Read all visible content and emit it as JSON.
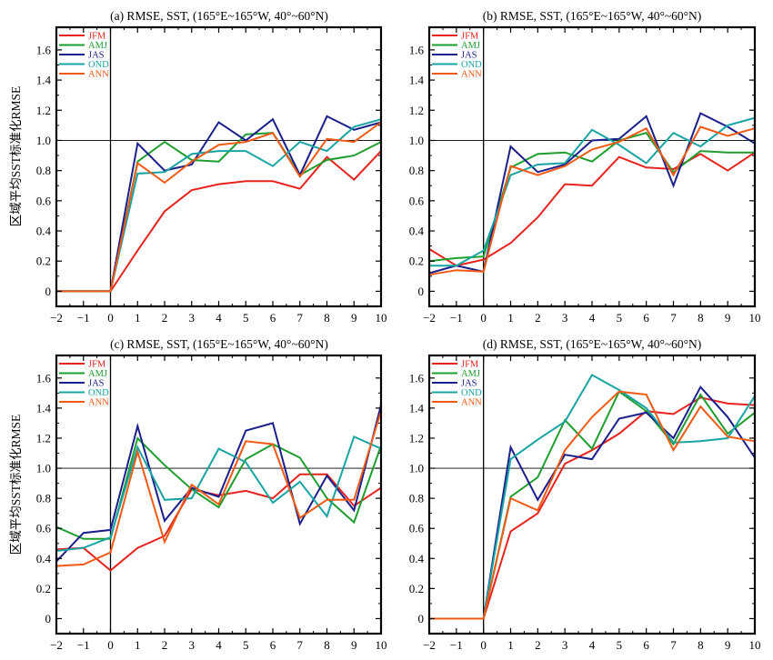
{
  "figure": {
    "ylabel": "区域平均SST标准化RMSE"
  },
  "chart_data": [
    {
      "type": "line",
      "title": "(a) RMSE, SST, (165°E~165°W, 40°~60°N)",
      "x": [
        -2,
        -1,
        0,
        1,
        2,
        3,
        4,
        5,
        6,
        7,
        8,
        9,
        10
      ],
      "xticks": [
        "−2",
        "−1",
        "0",
        "1",
        "2",
        "3",
        "4",
        "5",
        "6",
        "7",
        "8",
        "9",
        "10"
      ],
      "ylim": [
        -0.1,
        1.75
      ],
      "yticks": [
        "0",
        "0.2",
        "0.4",
        "0.6",
        "0.8",
        "1.0",
        "1.2",
        "1.4",
        "1.6"
      ],
      "series": [
        {
          "name": "JFM",
          "color": "#e8231e",
          "values": [
            0,
            0,
            0,
            0.27,
            0.53,
            0.67,
            0.71,
            0.73,
            0.73,
            0.68,
            0.89,
            0.74,
            0.93
          ]
        },
        {
          "name": "AMJ",
          "color": "#1e9e2e",
          "values": [
            0,
            0,
            0,
            0.86,
            0.99,
            0.87,
            0.86,
            1.04,
            1.05,
            0.77,
            0.87,
            0.9,
            0.99
          ]
        },
        {
          "name": "JAS",
          "color": "#1a1f8c",
          "values": [
            0,
            0,
            0,
            0.98,
            0.8,
            0.84,
            1.12,
            1.0,
            1.14,
            0.77,
            1.16,
            1.07,
            1.12
          ]
        },
        {
          "name": "OND",
          "color": "#19a4a4",
          "values": [
            0,
            0,
            0,
            0.78,
            0.79,
            0.91,
            0.93,
            0.93,
            0.83,
            0.99,
            0.93,
            1.09,
            1.14
          ]
        },
        {
          "name": "ANN",
          "color": "#f05a14",
          "values": [
            0,
            0,
            0,
            0.85,
            0.72,
            0.86,
            0.97,
            0.99,
            1.05,
            0.76,
            1.01,
            0.99,
            1.12
          ]
        }
      ]
    },
    {
      "type": "line",
      "title": "(b) RMSE, SST, (165°E~165°W, 40°~60°N)",
      "x": [
        -2,
        -1,
        0,
        1,
        2,
        3,
        4,
        5,
        6,
        7,
        8,
        9,
        10
      ],
      "xticks": [
        "−2",
        "−1",
        "0",
        "1",
        "2",
        "3",
        "4",
        "5",
        "6",
        "7",
        "8",
        "9",
        "10"
      ],
      "ylim": [
        -0.1,
        1.75
      ],
      "yticks": [
        "0",
        "0.2",
        "0.4",
        "0.6",
        "0.8",
        "1.0",
        "1.2",
        "1.4",
        "1.6"
      ],
      "series": [
        {
          "name": "JFM",
          "color": "#e8231e",
          "values": [
            0.28,
            0.17,
            0.21,
            0.32,
            0.49,
            0.71,
            0.7,
            0.89,
            0.82,
            0.81,
            0.91,
            0.8,
            0.92
          ]
        },
        {
          "name": "AMJ",
          "color": "#1e9e2e",
          "values": [
            0.2,
            0.22,
            0.23,
            0.82,
            0.91,
            0.92,
            0.86,
            1.0,
            1.05,
            0.79,
            0.93,
            0.92,
            0.92
          ]
        },
        {
          "name": "JAS",
          "color": "#1a1f8c",
          "values": [
            0.12,
            0.17,
            0.13,
            0.96,
            0.79,
            0.84,
            1.0,
            1.01,
            1.16,
            0.7,
            1.18,
            1.09,
            0.98
          ]
        },
        {
          "name": "OND",
          "color": "#19a4a4",
          "values": [
            0.17,
            0.17,
            0.27,
            0.77,
            0.84,
            0.85,
            1.07,
            0.97,
            0.85,
            1.05,
            0.96,
            1.1,
            1.15
          ]
        },
        {
          "name": "ANN",
          "color": "#f05a14",
          "values": [
            0.11,
            0.14,
            0.13,
            0.83,
            0.77,
            0.83,
            0.94,
            0.99,
            1.08,
            0.77,
            1.09,
            1.03,
            1.08
          ]
        }
      ]
    },
    {
      "type": "line",
      "title": "(c) RMSE, SST, (165°E~165°W, 40°~60°N)",
      "x": [
        -2,
        -1,
        0,
        1,
        2,
        3,
        4,
        5,
        6,
        7,
        8,
        9,
        10
      ],
      "xticks": [
        "−2",
        "−1",
        "0",
        "1",
        "2",
        "3",
        "4",
        "5",
        "6",
        "7",
        "8",
        "9",
        "10"
      ],
      "ylim": [
        -0.1,
        1.75
      ],
      "yticks": [
        "0",
        "0.2",
        "0.4",
        "0.6",
        "0.8",
        "1.0",
        "1.2",
        "1.4",
        "1.6"
      ],
      "series": [
        {
          "name": "JFM",
          "color": "#e8231e",
          "values": [
            0.46,
            0.47,
            0.32,
            0.47,
            0.55,
            0.86,
            0.82,
            0.85,
            0.8,
            0.96,
            0.96,
            0.75,
            0.87
          ]
        },
        {
          "name": "AMJ",
          "color": "#1e9e2e",
          "values": [
            0.61,
            0.53,
            0.53,
            1.2,
            1.02,
            0.86,
            0.74,
            1.06,
            1.16,
            1.07,
            0.8,
            0.64,
            1.15
          ]
        },
        {
          "name": "JAS",
          "color": "#1a1f8c",
          "values": [
            0.38,
            0.57,
            0.59,
            1.28,
            0.65,
            0.87,
            0.81,
            1.25,
            1.3,
            0.63,
            0.95,
            0.72,
            1.42
          ]
        },
        {
          "name": "OND",
          "color": "#19a4a4",
          "values": [
            0.45,
            0.47,
            0.54,
            1.14,
            0.79,
            0.8,
            1.13,
            1.04,
            0.77,
            0.91,
            0.68,
            1.21,
            1.13
          ]
        },
        {
          "name": "ANN",
          "color": "#f05a14",
          "values": [
            0.35,
            0.36,
            0.44,
            1.11,
            0.51,
            0.89,
            0.76,
            1.18,
            1.16,
            0.67,
            0.79,
            0.79,
            1.38
          ]
        }
      ]
    },
    {
      "type": "line",
      "title": "(d) RMSE, SST, (165°E~165°W, 40°~60°N)",
      "x": [
        -2,
        -1,
        0,
        1,
        2,
        3,
        4,
        5,
        6,
        7,
        8,
        9,
        10
      ],
      "xticks": [
        "−2",
        "−1",
        "0",
        "1",
        "2",
        "3",
        "4",
        "5",
        "6",
        "7",
        "8",
        "9",
        "10"
      ],
      "ylim": [
        -0.1,
        1.75
      ],
      "yticks": [
        "0",
        "0.2",
        "0.4",
        "0.6",
        "0.8",
        "1.0",
        "1.2",
        "1.4",
        "1.6"
      ],
      "series": [
        {
          "name": "JFM",
          "color": "#e8231e",
          "values": [
            0,
            0,
            0,
            0.58,
            0.7,
            1.03,
            1.12,
            1.23,
            1.38,
            1.36,
            1.47,
            1.43,
            1.42
          ]
        },
        {
          "name": "AMJ",
          "color": "#1e9e2e",
          "values": [
            0,
            0,
            0,
            0.81,
            0.94,
            1.32,
            1.13,
            1.51,
            1.38,
            1.16,
            1.49,
            1.23,
            1.37
          ]
        },
        {
          "name": "JAS",
          "color": "#1a1f8c",
          "values": [
            0,
            0,
            0,
            1.14,
            0.79,
            1.09,
            1.06,
            1.33,
            1.37,
            1.2,
            1.54,
            1.34,
            1.07
          ]
        },
        {
          "name": "OND",
          "color": "#19a4a4",
          "values": [
            0,
            0,
            0,
            1.06,
            1.19,
            1.31,
            1.62,
            1.52,
            1.4,
            1.17,
            1.18,
            1.2,
            1.48
          ]
        },
        {
          "name": "ANN",
          "color": "#f05a14",
          "values": [
            0,
            0,
            0,
            0.8,
            0.72,
            1.12,
            1.34,
            1.51,
            1.49,
            1.12,
            1.41,
            1.21,
            1.18
          ]
        }
      ]
    }
  ]
}
